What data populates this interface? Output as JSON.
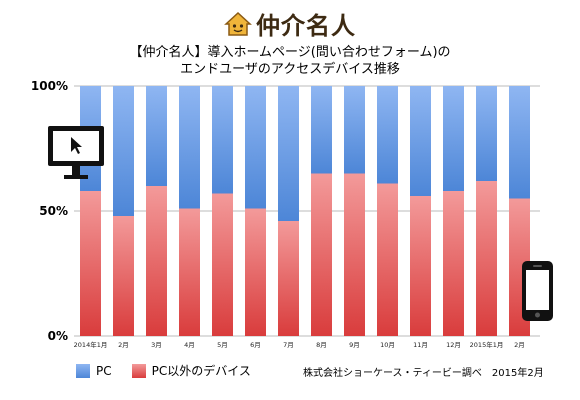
{
  "brand": {
    "name": "仲介名人",
    "icon": "house-face-icon"
  },
  "colors": {
    "pc_top": "#8fb6f2",
    "pc_bottom": "#4d86d7",
    "other_top": "#f39a9a",
    "other_bottom": "#d93c3c"
  },
  "chart_data": {
    "type": "bar",
    "stacked": true,
    "title": "【仲介名人】導入ホームページ(問い合わせフォーム)の\nエンドユーザのアクセスデバイス推移",
    "categories": [
      "2014年1月",
      "2月",
      "3月",
      "4月",
      "5月",
      "6月",
      "7月",
      "8月",
      "9月",
      "10月",
      "11月",
      "12月",
      "2015年1月",
      "2月"
    ],
    "series": [
      {
        "name": "PC以外のデバイス",
        "values": [
          58,
          48,
          60,
          51,
          57,
          51,
          46,
          65,
          65,
          61,
          56,
          58,
          62,
          55
        ]
      },
      {
        "name": "PC",
        "values": [
          42,
          52,
          40,
          49,
          43,
          49,
          54,
          35,
          35,
          39,
          44,
          42,
          38,
          45
        ]
      }
    ],
    "yticks": [
      "100%",
      "50%",
      "0%"
    ],
    "ylim": [
      0,
      100
    ],
    "legend": "bottom-left",
    "grid": true
  },
  "legend": {
    "pc": "PC",
    "other": "PC以外のデバイス"
  },
  "source": "株式会社ショーケース・ティービー調べ　2015年2月",
  "icons": {
    "desktop": "desktop-monitor-icon",
    "phone": "smartphone-icon"
  }
}
